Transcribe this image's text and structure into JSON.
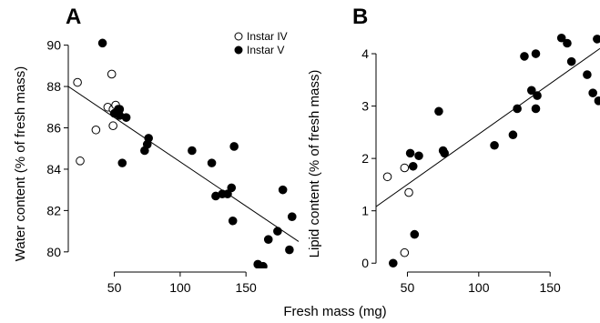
{
  "chart_data": [
    {
      "panel": "A",
      "type": "scatter",
      "ylabel": "Water content (% of fresh mass)",
      "xlim": [
        15,
        190
      ],
      "ylim": [
        79.2,
        90.6
      ],
      "x_ticks": [
        50,
        100,
        150
      ],
      "y_ticks": [
        80,
        82,
        84,
        86,
        88,
        90
      ],
      "legend_position": "top-right",
      "series": [
        {
          "name": "Instar IV",
          "marker": "open-circle",
          "color": "#000000",
          "points": [
            [
              22,
              88.2
            ],
            [
              24,
              84.4
            ],
            [
              36,
              85.9
            ],
            [
              45,
              87.0
            ],
            [
              48,
              88.6
            ],
            [
              49,
              86.9
            ],
            [
              49,
              86.1
            ],
            [
              51,
              87.1
            ]
          ]
        },
        {
          "name": "Instar V",
          "marker": "filled-circle",
          "color": "#000000",
          "points": [
            [
              41,
              90.1
            ],
            [
              50,
              86.7
            ],
            [
              53,
              86.9
            ],
            [
              54,
              86.9
            ],
            [
              54,
              86.6
            ],
            [
              56,
              84.3
            ],
            [
              59,
              86.5
            ],
            [
              73,
              84.9
            ],
            [
              75,
              85.2
            ],
            [
              76,
              85.5
            ],
            [
              109,
              84.9
            ],
            [
              124,
              84.3
            ],
            [
              127,
              82.7
            ],
            [
              132,
              82.8
            ],
            [
              136,
              82.8
            ],
            [
              139,
              83.1
            ],
            [
              140,
              81.5
            ],
            [
              141,
              85.1
            ],
            [
              159,
              79.4
            ],
            [
              163,
              79.3
            ],
            [
              167,
              80.6
            ],
            [
              174,
              81.0
            ],
            [
              178,
              83.0
            ],
            [
              183,
              80.1
            ],
            [
              185,
              81.7
            ]
          ]
        }
      ],
      "regression_line": {
        "x": [
          15,
          190
        ],
        "y": [
          88.0,
          80.5
        ]
      }
    },
    {
      "panel": "B",
      "type": "scatter",
      "ylabel": "Lipid content (% of fresh mass)",
      "xlim": [
        28,
        185
      ],
      "ylim": [
        -0.1,
        4.4
      ],
      "x_ticks": [
        50,
        100,
        150
      ],
      "y_ticks": [
        0,
        1,
        2,
        3,
        4
      ],
      "series": [
        {
          "name": "Instar IV",
          "marker": "open-circle",
          "color": "#000000",
          "points": [
            [
              36,
              1.65
            ],
            [
              48,
              1.82
            ],
            [
              48,
              0.2
            ],
            [
              51,
              1.35
            ]
          ]
        },
        {
          "name": "Instar V",
          "marker": "filled-circle",
          "color": "#000000",
          "points": [
            [
              40,
              0.0
            ],
            [
              52,
              2.1
            ],
            [
              54,
              1.85
            ],
            [
              55,
              0.55
            ],
            [
              58,
              2.05
            ],
            [
              72,
              2.9
            ],
            [
              75,
              2.15
            ],
            [
              76,
              2.1
            ],
            [
              111,
              2.25
            ],
            [
              124,
              2.45
            ],
            [
              127,
              2.95
            ],
            [
              132,
              3.95
            ],
            [
              137,
              3.3
            ],
            [
              140,
              4.0
            ],
            [
              140,
              2.95
            ],
            [
              141,
              3.2
            ],
            [
              158,
              4.3
            ],
            [
              162,
              4.2
            ],
            [
              165,
              3.85
            ],
            [
              176,
              3.6
            ],
            [
              180,
              3.25
            ],
            [
              183,
              4.28
            ],
            [
              184,
              3.1
            ]
          ]
        }
      ],
      "regression_line": {
        "x": [
          28,
          185
        ],
        "y": [
          1.08,
          4.1
        ]
      }
    }
  ],
  "figure": {
    "xlabel": "Fresh mass (mg)",
    "panel_labels": [
      "A",
      "B"
    ]
  }
}
